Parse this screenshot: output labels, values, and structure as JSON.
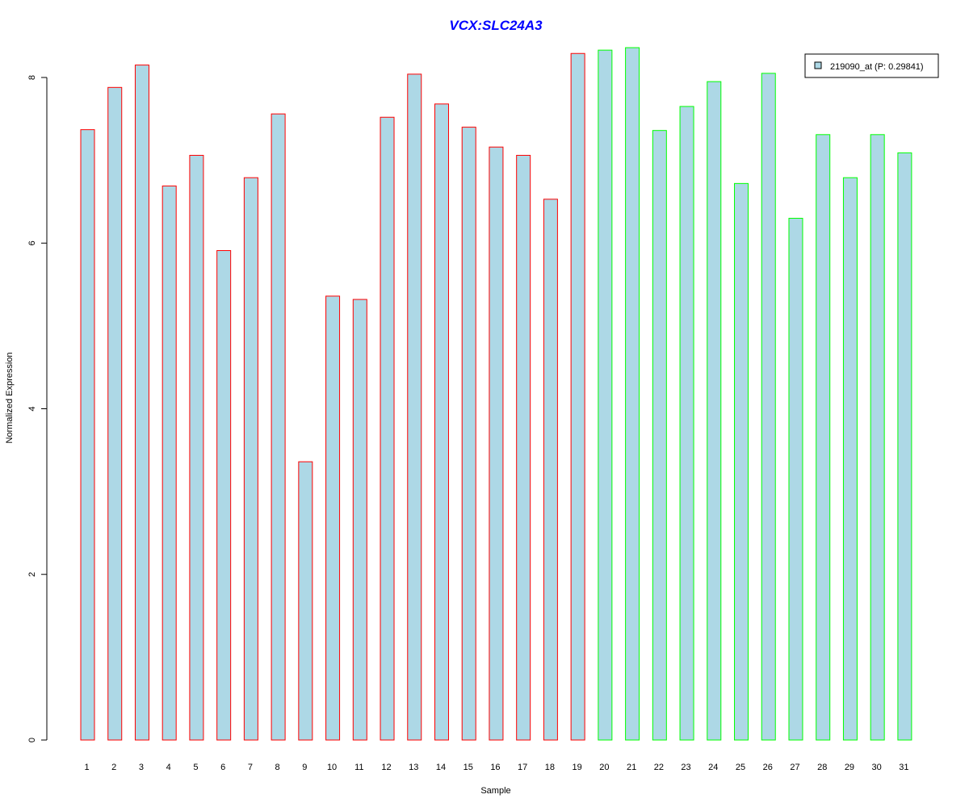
{
  "chart_data": {
    "type": "bar",
    "title": "VCX:SLC24A3",
    "xlabel": "Sample",
    "ylabel": "Normalized Expression",
    "ylim": [
      0,
      8.4
    ],
    "yticks": [
      0,
      2,
      4,
      6,
      8
    ],
    "grid": false,
    "legend_position": "top-right",
    "categories": [
      "1",
      "2",
      "3",
      "4",
      "5",
      "6",
      "7",
      "8",
      "9",
      "10",
      "11",
      "12",
      "13",
      "14",
      "15",
      "16",
      "17",
      "18",
      "19",
      "20",
      "21",
      "22",
      "23",
      "24",
      "25",
      "26",
      "27",
      "28",
      "29",
      "30",
      "31"
    ],
    "series": [
      {
        "name": "219090_at (P: 0.29841)",
        "values": [
          7.37,
          7.88,
          8.15,
          6.69,
          7.06,
          5.91,
          6.79,
          7.56,
          3.36,
          5.36,
          5.32,
          7.52,
          8.04,
          7.68,
          7.4,
          7.16,
          7.06,
          6.53,
          8.29,
          8.33,
          8.36,
          7.36,
          7.65,
          7.95,
          6.72,
          8.05,
          6.3,
          7.31,
          6.79,
          7.31,
          7.09
        ],
        "group_start_index": 19
      }
    ],
    "colors": {
      "bar_fill": "#add8e6",
      "group1_border": "#ff0000",
      "group2_border": "#00ff00",
      "title": "#0000ff",
      "axis": "#000000"
    }
  }
}
